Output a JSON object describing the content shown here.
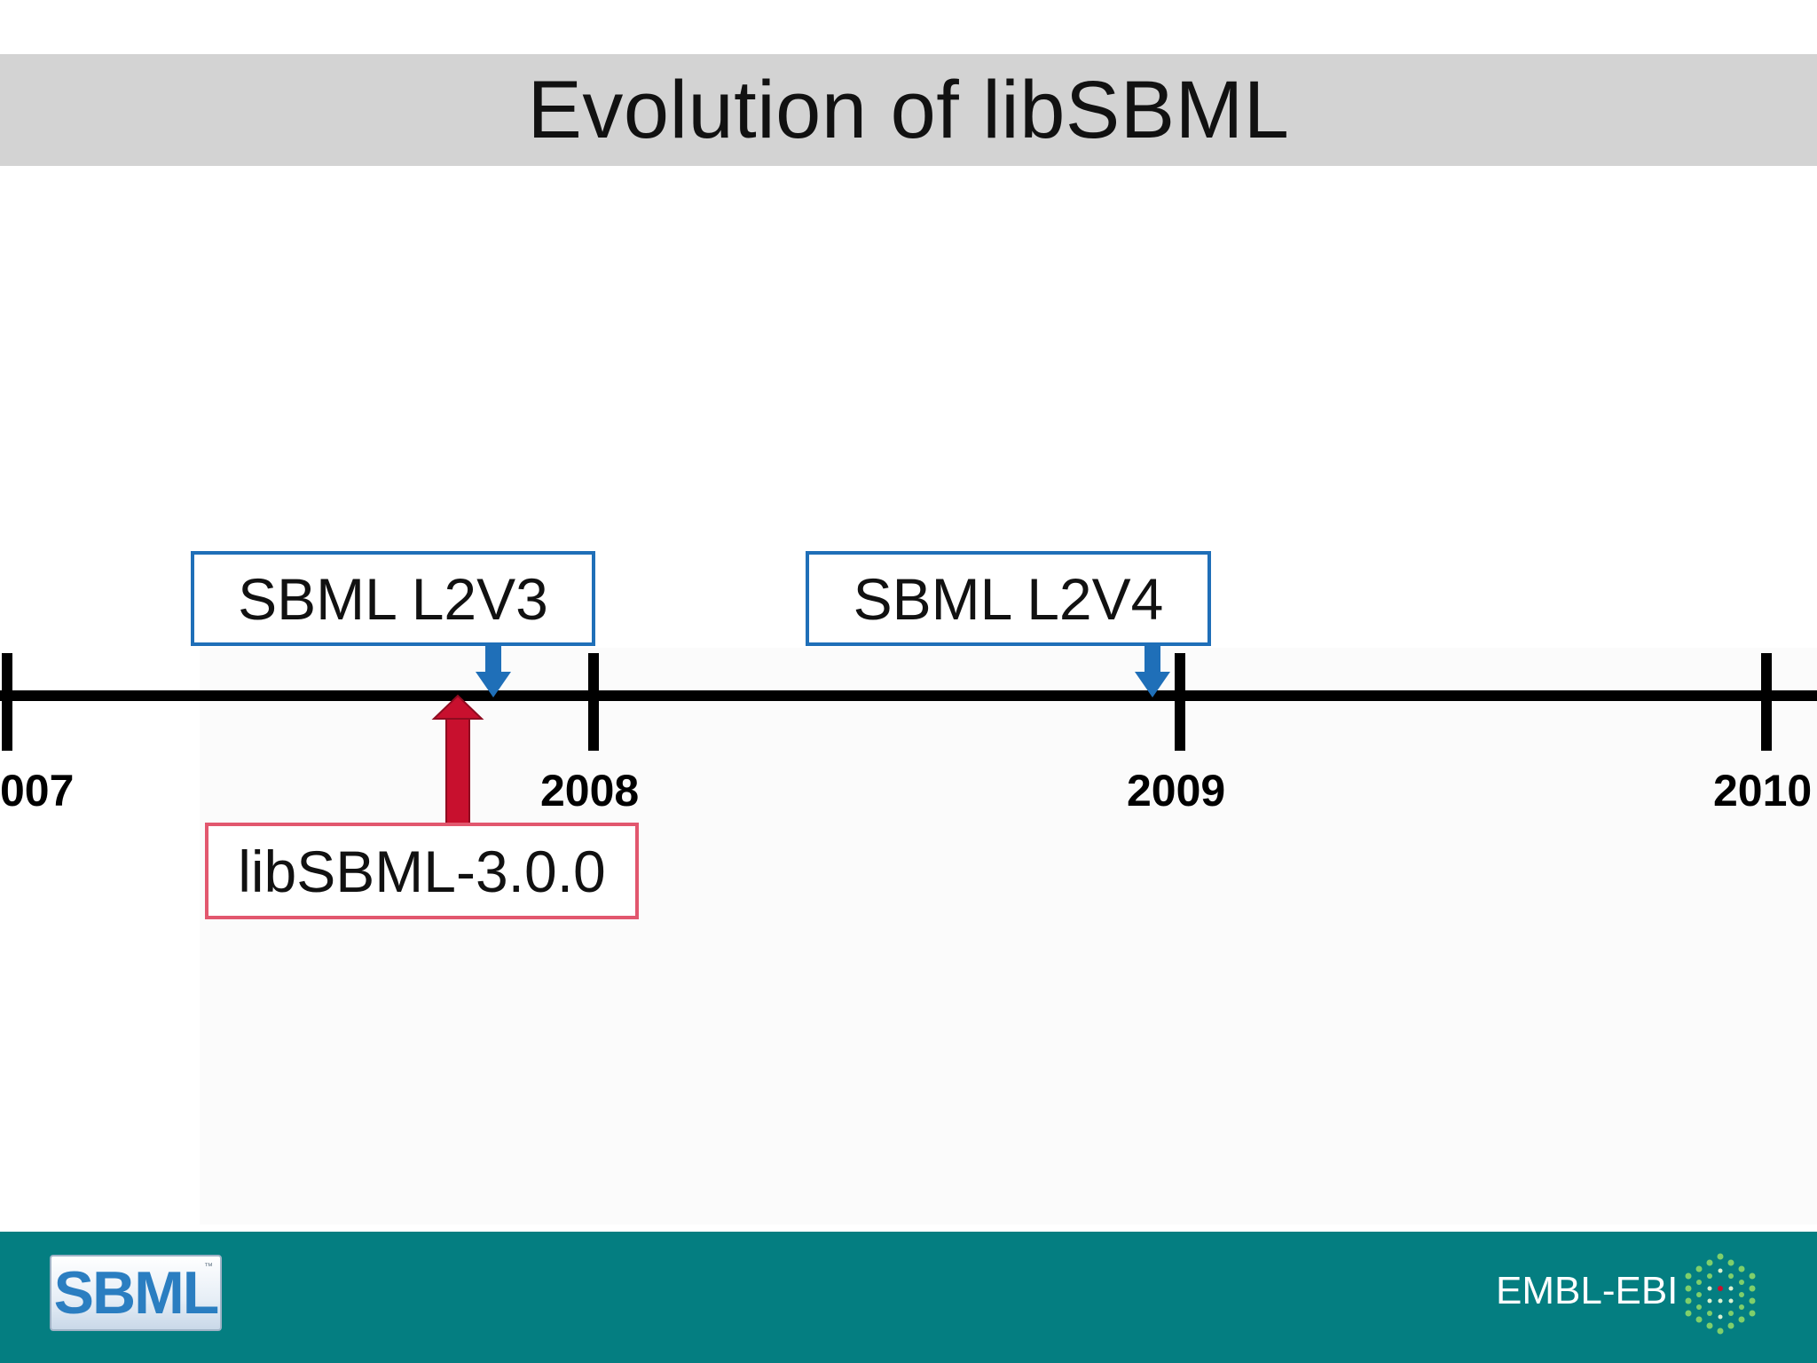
{
  "slide": {
    "title": "Evolution of libSBML"
  },
  "timeline": {
    "years": [
      {
        "label": "007"
      },
      {
        "label": "2008"
      },
      {
        "label": "2009"
      },
      {
        "label": "2010"
      }
    ],
    "spec_events": [
      {
        "label": "SBML L2V3"
      },
      {
        "label": "SBML L2V4"
      }
    ],
    "release_events": [
      {
        "label": "libSBML-3.0.0"
      }
    ]
  },
  "colors": {
    "title_band": "#d3d3d3",
    "spec_blue": "#1f6fb8",
    "release_red": "#c8102e",
    "release_border": "#e2576e",
    "footer_teal": "#047e81"
  },
  "footer": {
    "logo_text": "SBML",
    "logo_tm": "™",
    "org_text": "EMBL-EBI",
    "org_icon": "embl-ebi-dots-icon"
  }
}
